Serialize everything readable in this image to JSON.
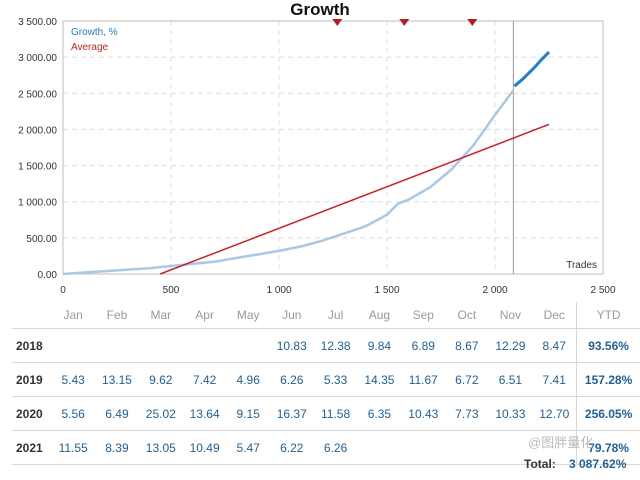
{
  "chart_data": {
    "type": "line",
    "title": "Growth",
    "xlabel": "Trades",
    "xlim": [
      0,
      2500
    ],
    "ylim": [
      0,
      3500
    ],
    "x_ticks": [
      "0",
      "500",
      "1 000",
      "1 500",
      "2 000",
      "2 500"
    ],
    "y_ticks": [
      "0.00",
      "500.00",
      "1 000.00",
      "1 500.00",
      "2 000.00",
      "2 500.00",
      "3 000.00",
      "3 500.00"
    ],
    "legend": "top-left",
    "grid": true,
    "vertical_marker_x": 2085,
    "event_markers_x": [
      1270,
      1580,
      1895
    ],
    "series": [
      {
        "name": "Growth, %",
        "color": "#a8c8e4",
        "x": [
          0,
          100,
          200,
          300,
          400,
          500,
          600,
          700,
          800,
          900,
          1000,
          1100,
          1200,
          1300,
          1400,
          1500,
          1550,
          1600,
          1700,
          1800,
          1900,
          2000,
          2085
        ],
        "y": [
          0,
          20,
          40,
          60,
          80,
          110,
          140,
          170,
          220,
          270,
          320,
          380,
          460,
          560,
          660,
          820,
          970,
          1030,
          1200,
          1450,
          1780,
          2200,
          2540
        ]
      },
      {
        "name": "",
        "color": "#1e7fd0",
        "x": [
          2090,
          2110,
          2130,
          2150,
          2170,
          2190,
          2210,
          2230,
          2250
        ],
        "y": [
          2600,
          2650,
          2700,
          2760,
          2820,
          2880,
          2950,
          3010,
          3070
        ]
      },
      {
        "name": "Average",
        "color": "#cc2222",
        "x": [
          450,
          2250
        ],
        "y": [
          0,
          2070
        ]
      }
    ]
  },
  "table": {
    "months": [
      "Jan",
      "Feb",
      "Mar",
      "Apr",
      "May",
      "Jun",
      "Jul",
      "Aug",
      "Sep",
      "Oct",
      "Nov",
      "Dec"
    ],
    "ytd_label": "YTD",
    "rows": [
      {
        "year": "2018",
        "values": [
          "",
          "",
          "",
          "",
          "",
          "10.83",
          "12.38",
          "9.84",
          "6.89",
          "8.67",
          "12.29",
          "8.47"
        ],
        "ytd": "93.56%"
      },
      {
        "year": "2019",
        "values": [
          "5.43",
          "13.15",
          "9.62",
          "7.42",
          "4.96",
          "6.26",
          "5.33",
          "14.35",
          "11.67",
          "6.72",
          "6.51",
          "7.41"
        ],
        "ytd": "157.28%"
      },
      {
        "year": "2020",
        "values": [
          "5.56",
          "6.49",
          "25.02",
          "13.64",
          "9.15",
          "16.37",
          "11.58",
          "6.35",
          "10.43",
          "7.73",
          "10.33",
          "12.70"
        ],
        "ytd": "256.05%"
      },
      {
        "year": "2021",
        "values": [
          "11.55",
          "8.39",
          "13.05",
          "10.49",
          "5.47",
          "6.22",
          "6.26",
          "",
          "",
          "",
          "",
          ""
        ],
        "ytd": "79.78%"
      }
    ],
    "total_label": "Total:",
    "total_value": "3 087.62%"
  },
  "watermark": "@图胖量化",
  "colors": {
    "link": "#1f5f99",
    "grid": "#dddddd"
  }
}
